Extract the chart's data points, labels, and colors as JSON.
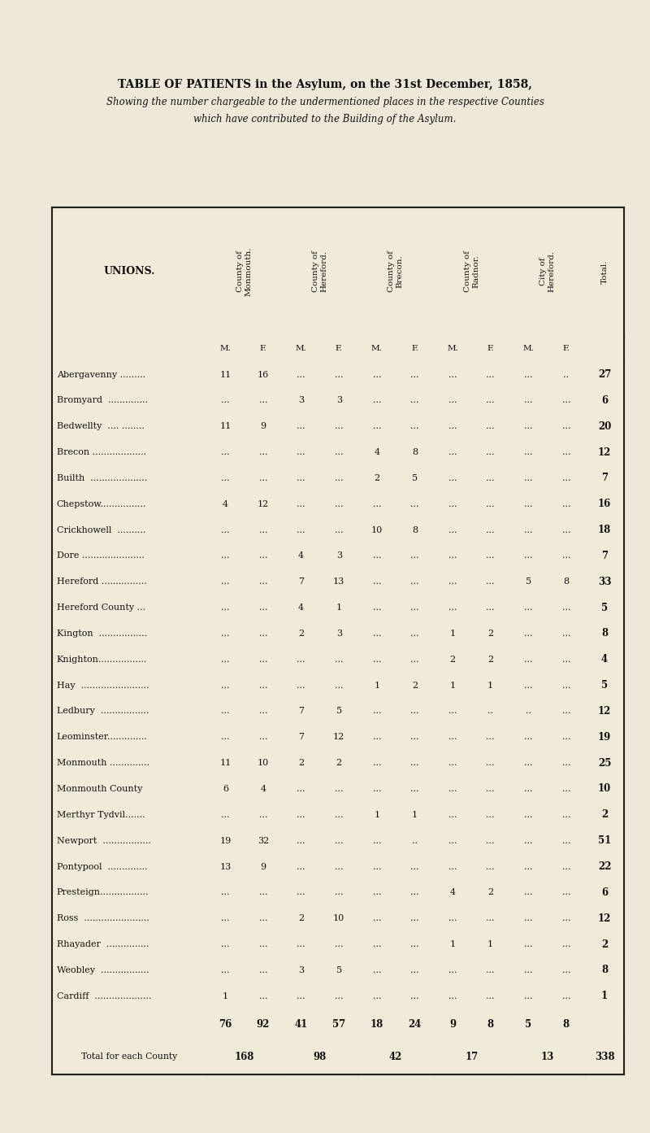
{
  "title_line1": "TABLE OF PATIENTS in the Asylum, on the 31st December, 1858,",
  "title_line2": "Showing the number chargeable to the undermentioned places in the respective Counties",
  "title_line3": "which have contributed to the Building of the Asylum.",
  "rows": [
    {
      "name": "Abergavenny .........",
      "vals": [
        "11",
        "16",
        "...",
        "...",
        "...",
        "...",
        "...",
        "...",
        "...",
        ".."
      ],
      "total": "27"
    },
    {
      "name": "Bromyard  ..............",
      "vals": [
        "...",
        "...",
        "3",
        "3",
        "...",
        "...",
        "...",
        "...",
        "...",
        "..."
      ],
      "total": "6"
    },
    {
      "name": "Bedwellty  .... ........",
      "vals": [
        "11",
        "9",
        "...",
        "...",
        "...",
        "...",
        "...",
        "...",
        "...",
        "..."
      ],
      "total": "20"
    },
    {
      "name": "Brecon ...................",
      "vals": [
        "...",
        "...",
        "...",
        "...",
        "4",
        "8",
        "...",
        "...",
        "...",
        "..."
      ],
      "total": "12"
    },
    {
      "name": "Builth  ....................",
      "vals": [
        "...",
        "...",
        "...",
        "...",
        "2",
        "5",
        "...",
        "...",
        "...",
        "..."
      ],
      "total": "7"
    },
    {
      "name": "Chepstow................",
      "vals": [
        "4",
        "12",
        "...",
        "...",
        "...",
        "...",
        "...",
        "...",
        "...",
        "..."
      ],
      "total": "16"
    },
    {
      "name": "Crickhowell  ..........",
      "vals": [
        "...",
        "...",
        "...",
        "...",
        "10",
        "8",
        "...",
        "...",
        "...",
        "..."
      ],
      "total": "18"
    },
    {
      "name": "Dore ......................",
      "vals": [
        "...",
        "...",
        "4",
        "3",
        "...",
        "...",
        "...",
        "...",
        "...",
        "..."
      ],
      "total": "7"
    },
    {
      "name": "Hereford ................",
      "vals": [
        "...",
        "...",
        "7",
        "13",
        "...",
        "...",
        "...",
        "...",
        "5",
        "8"
      ],
      "total": "33"
    },
    {
      "name": "Hereford County ...",
      "vals": [
        "...",
        "...",
        "4",
        "1",
        "...",
        "...",
        "...",
        "...",
        "...",
        "..."
      ],
      "total": "5"
    },
    {
      "name": "Kington  .................",
      "vals": [
        "...",
        "...",
        "2",
        "3",
        "...",
        "...",
        "1",
        "2",
        "...",
        "..."
      ],
      "total": "8"
    },
    {
      "name": "Knighton.................",
      "vals": [
        "...",
        "...",
        "...",
        "...",
        "...",
        "...",
        "2",
        "2",
        "...",
        "..."
      ],
      "total": "4"
    },
    {
      "name": "Hay  ........................",
      "vals": [
        "...",
        "...",
        "...",
        "...",
        "1",
        "2",
        "1",
        "1",
        "...",
        "..."
      ],
      "total": "5"
    },
    {
      "name": "Ledbury  .................",
      "vals": [
        "...",
        "...",
        "7",
        "5",
        "...",
        "...",
        "...",
        "..",
        "..",
        "..."
      ],
      "total": "12"
    },
    {
      "name": "Leominster..............",
      "vals": [
        "...",
        "...",
        "7",
        "12",
        "...",
        "...",
        "...",
        "...",
        "...",
        "..."
      ],
      "total": "19"
    },
    {
      "name": "Monmouth ..............",
      "vals": [
        "11",
        "10",
        "2",
        "2",
        "...",
        "...",
        "...",
        "...",
        "...",
        "..."
      ],
      "total": "25"
    },
    {
      "name": "Monmouth County ",
      "vals": [
        "6",
        "4",
        "...",
        "...",
        "...",
        "...",
        "...",
        "...",
        "...",
        "..."
      ],
      "total": "10"
    },
    {
      "name": "Merthyr Tydvil.......",
      "vals": [
        "...",
        "...",
        "...",
        "...",
        "1",
        "1",
        "...",
        "...",
        "...",
        "..."
      ],
      "total": "2"
    },
    {
      "name": "Newport  .................",
      "vals": [
        "19",
        "32",
        "...",
        "...",
        "...",
        "..",
        "...",
        "...",
        "...",
        "..."
      ],
      "total": "51"
    },
    {
      "name": "Pontypool  ..............",
      "vals": [
        "13",
        "9",
        "...",
        "...",
        "...",
        "...",
        "...",
        "...",
        "...",
        "..."
      ],
      "total": "22"
    },
    {
      "name": "Presteign.................",
      "vals": [
        "...",
        "...",
        "...",
        "...",
        "...",
        "...",
        "4",
        "2",
        "...",
        "..."
      ],
      "total": "6"
    },
    {
      "name": "Ross  .......................",
      "vals": [
        "...",
        "...",
        "2",
        "10",
        "...",
        "...",
        "...",
        "...",
        "...",
        "..."
      ],
      "total": "12"
    },
    {
      "name": "Rhayader  ...............",
      "vals": [
        "...",
        "...",
        "...",
        "...",
        "...",
        "...",
        "1",
        "1",
        "...",
        "..."
      ],
      "total": "2"
    },
    {
      "name": "Weobley  .................",
      "vals": [
        "...",
        "...",
        "3",
        "5",
        "...",
        "...",
        "...",
        "...",
        "...",
        "..."
      ],
      "total": "8"
    },
    {
      "name": "Cardiff  ....................",
      "vals": [
        "1",
        "...",
        "...",
        "...",
        "...",
        "...",
        "...",
        "...",
        "...",
        "..."
      ],
      "total": "1"
    }
  ],
  "totals_row": [
    "76",
    "92",
    "41",
    "57",
    "18",
    "24",
    "9",
    "8",
    "5",
    "8"
  ],
  "county_totals": [
    "168",
    "98",
    "42",
    "17",
    "13"
  ],
  "grand_total": "338",
  "col_group_headers": [
    "County of\nMonmouth.",
    "County of\nHereford.",
    "County of\nBrecon.",
    "County of\nRadnor.",
    "City of\nHereford."
  ],
  "total_header": "Total.",
  "bg_color": "#ede8d8",
  "table_bg": "#f2ead8",
  "text_color": "#111111",
  "line_color": "#222222"
}
